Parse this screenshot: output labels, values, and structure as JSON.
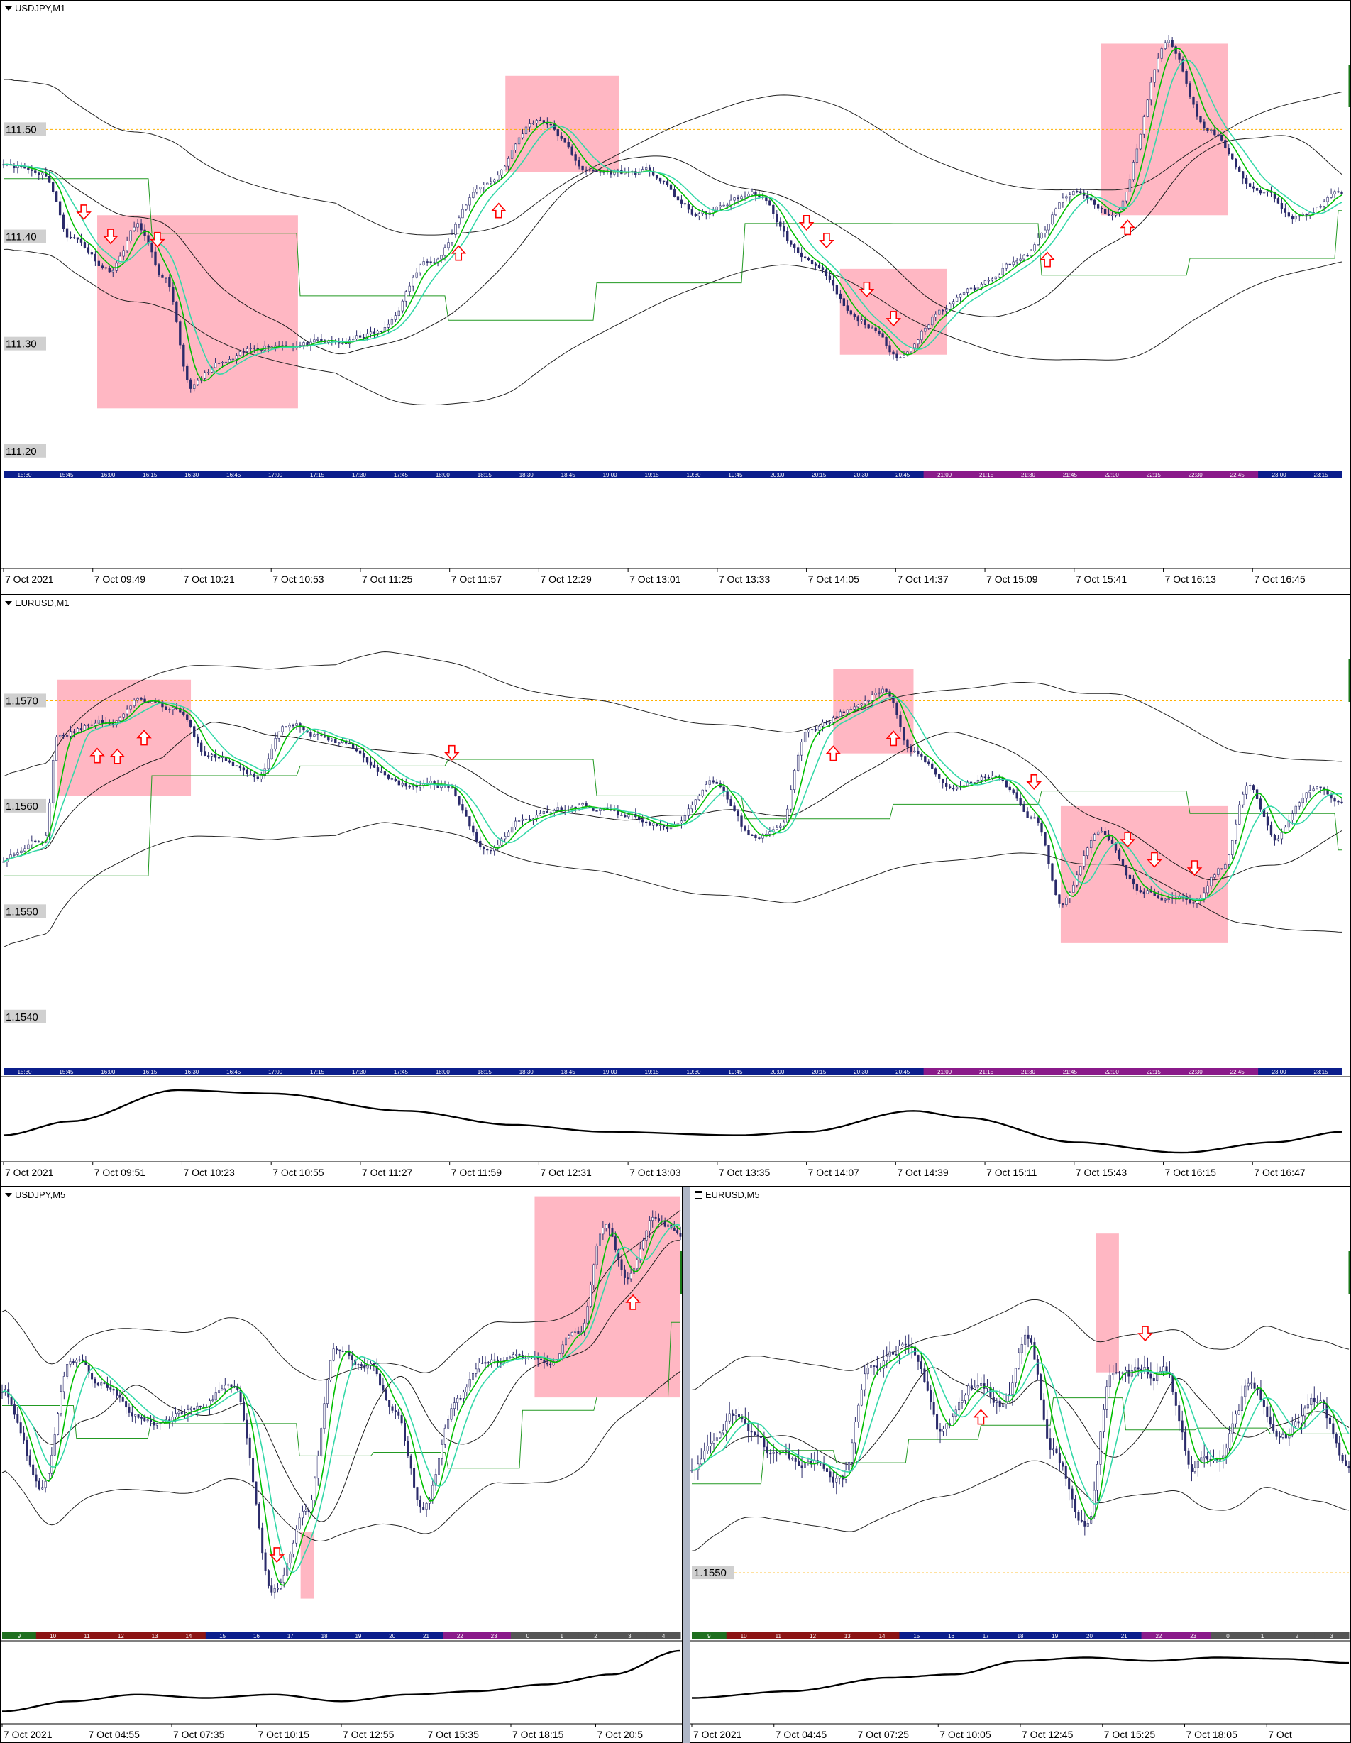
{
  "colors": {
    "bull": "#2a2a6a",
    "box": "#ffaab8",
    "ma_fast": "#00c000",
    "ma_slow": "#34d8a8",
    "envelope": "#222222",
    "mid": "#1a1a1a",
    "baseline": "#229922",
    "arrow": "#ff0000",
    "grid": "#ffb000"
  },
  "panes": [
    {
      "id": "p1",
      "title": "USDJPY,M1",
      "icon": "chevron-down-icon",
      "price_labels": [
        {
          "text": "111.50",
          "v": 111.5
        },
        {
          "text": "111.40",
          "v": 111.4
        },
        {
          "text": "111.30",
          "v": 111.3
        },
        {
          "text": "111.20",
          "v": 111.2
        }
      ],
      "time_labels": [
        "7 Oct 2021",
        "7 Oct 09:49",
        "7 Oct 10:21",
        "7 Oct 10:53",
        "7 Oct 11:25",
        "7 Oct 11:57",
        "7 Oct 12:29",
        "7 Oct 13:01",
        "7 Oct 13:33",
        "7 Oct 14:05",
        "7 Oct 14:37",
        "7 Oct 15:09",
        "7 Oct 15:41",
        "7 Oct 16:13",
        "7 Oct 16:45"
      ],
      "session_labels": [
        "15:30",
        "15:45",
        "16:00",
        "16:15",
        "16:30",
        "16:45",
        "17:00",
        "17:15",
        "17:30",
        "17:45",
        "18:00",
        "18:15",
        "18:30",
        "18:45",
        "19:00",
        "19:15",
        "19:30",
        "19:45",
        "20:00",
        "20:15",
        "20:30",
        "20:45",
        "21:00",
        "21:15",
        "21:30",
        "21:45",
        "22:00",
        "22:15",
        "22:30",
        "22:45",
        "23:00",
        "23:15"
      ]
    },
    {
      "id": "p2",
      "title": "EURUSD,M1",
      "icon": "chevron-down-icon",
      "price_labels": [
        {
          "text": "1.1570",
          "v": 1.157
        },
        {
          "text": "1.1560",
          "v": 1.156
        },
        {
          "text": "1.1550",
          "v": 1.155
        },
        {
          "text": "1.1540",
          "v": 1.154
        }
      ],
      "time_labels": [
        "7 Oct 2021",
        "7 Oct 09:51",
        "7 Oct 10:23",
        "7 Oct 10:55",
        "7 Oct 11:27",
        "7 Oct 11:59",
        "7 Oct 12:31",
        "7 Oct 13:03",
        "7 Oct 13:35",
        "7 Oct 14:07",
        "7 Oct 14:39",
        "7 Oct 15:11",
        "7 Oct 15:43",
        "7 Oct 16:15",
        "7 Oct 16:47"
      ],
      "session_labels": [
        "15:30",
        "15:45",
        "16:00",
        "16:15",
        "16:30",
        "16:45",
        "17:00",
        "17:15",
        "17:30",
        "17:45",
        "18:00",
        "18:15",
        "18:30",
        "18:45",
        "19:00",
        "19:15",
        "19:30",
        "19:45",
        "20:00",
        "20:15",
        "20:30",
        "20:45",
        "21:00",
        "21:15",
        "21:30",
        "21:45",
        "22:00",
        "22:15",
        "22:30",
        "22:45",
        "23:00",
        "23:15"
      ]
    },
    {
      "id": "p3",
      "title": "USDJPY,M5",
      "icon": "chevron-down-icon",
      "price_labels": [],
      "time_labels": [
        "7 Oct 2021",
        "7 Oct 04:55",
        "7 Oct 07:35",
        "7 Oct 10:15",
        "7 Oct 12:55",
        "7 Oct 15:35",
        "7 Oct 18:15",
        "7 Oct 20:5"
      ],
      "session_labels": [
        "9",
        "10",
        "11",
        "12",
        "13",
        "14",
        "15",
        "16",
        "17",
        "18",
        "19",
        "20",
        "21",
        "22",
        "23",
        "0",
        "1",
        "2",
        "3",
        "4"
      ]
    },
    {
      "id": "p4",
      "title": "EURUSD,M5",
      "icon": "window-icon",
      "price_labels": [
        {
          "text": "1.1550",
          "v": 1.155
        }
      ],
      "time_labels": [
        "7 Oct 2021",
        "7 Oct 04:45",
        "7 Oct 07:25",
        "7 Oct 10:05",
        "7 Oct 12:45",
        "7 Oct 15:25",
        "7 Oct 18:05",
        "7 Oct"
      ],
      "session_labels": [
        "9",
        "10",
        "11",
        "12",
        "13",
        "14",
        "15",
        "16",
        "17",
        "18",
        "19",
        "20",
        "21",
        "22",
        "23",
        "0",
        "1",
        "2",
        "3"
      ]
    }
  ],
  "chart_data": [
    {
      "type": "candlestick",
      "symbol": "USDJPY",
      "timeframe": "M1",
      "ylim": [
        111.18,
        111.62
      ],
      "y_ticks": [
        111.2,
        111.3,
        111.4,
        111.5
      ],
      "anchors": [
        [
          0,
          111.47
        ],
        [
          0.03,
          111.46
        ],
        [
          0.05,
          111.4
        ],
        [
          0.08,
          111.37
        ],
        [
          0.1,
          111.41
        ],
        [
          0.12,
          111.36
        ],
        [
          0.14,
          111.26
        ],
        [
          0.16,
          111.28
        ],
        [
          0.2,
          111.3
        ],
        [
          0.25,
          111.3
        ],
        [
          0.28,
          111.31
        ],
        [
          0.32,
          111.38
        ],
        [
          0.36,
          111.45
        ],
        [
          0.4,
          111.51
        ],
        [
          0.44,
          111.46
        ],
        [
          0.48,
          111.46
        ],
        [
          0.52,
          111.42
        ],
        [
          0.56,
          111.44
        ],
        [
          0.6,
          111.38
        ],
        [
          0.64,
          111.32
        ],
        [
          0.67,
          111.29
        ],
        [
          0.7,
          111.33
        ],
        [
          0.72,
          111.35
        ],
        [
          0.76,
          111.38
        ],
        [
          0.8,
          111.44
        ],
        [
          0.83,
          111.42
        ],
        [
          0.87,
          111.58
        ],
        [
          0.9,
          111.5
        ],
        [
          0.94,
          111.44
        ],
        [
          0.97,
          111.42
        ],
        [
          1.0,
          111.44
        ]
      ],
      "boxes": [
        [
          0.07,
          0.22,
          111.24,
          111.42
        ],
        [
          0.375,
          0.46,
          111.46,
          111.55
        ],
        [
          0.625,
          0.705,
          111.29,
          111.37
        ],
        [
          0.82,
          0.915,
          111.42,
          111.58
        ]
      ],
      "arrows": [
        {
          "x": 0.06,
          "dir": "down"
        },
        {
          "x": 0.08,
          "dir": "down"
        },
        {
          "x": 0.115,
          "dir": "down"
        },
        {
          "x": 0.34,
          "dir": "up"
        },
        {
          "x": 0.37,
          "dir": "up"
        },
        {
          "x": 0.6,
          "dir": "down"
        },
        {
          "x": 0.615,
          "dir": "down"
        },
        {
          "x": 0.645,
          "dir": "down"
        },
        {
          "x": 0.665,
          "dir": "down"
        },
        {
          "x": 0.78,
          "dir": "up"
        },
        {
          "x": 0.84,
          "dir": "up"
        }
      ]
    },
    {
      "type": "candlestick",
      "symbol": "EURUSD",
      "timeframe": "M1",
      "ylim": [
        1.1535,
        1.158
      ],
      "y_ticks": [
        1.154,
        1.155,
        1.156,
        1.157
      ],
      "anchors": [
        [
          0,
          1.1555
        ],
        [
          0.03,
          1.1557
        ],
        [
          0.04,
          1.1567
        ],
        [
          0.08,
          1.1568
        ],
        [
          0.1,
          1.157
        ],
        [
          0.13,
          1.1569
        ],
        [
          0.15,
          1.1565
        ],
        [
          0.19,
          1.1563
        ],
        [
          0.21,
          1.1568
        ],
        [
          0.25,
          1.1566
        ],
        [
          0.3,
          1.1562
        ],
        [
          0.33,
          1.1562
        ],
        [
          0.36,
          1.1556
        ],
        [
          0.39,
          1.1559
        ],
        [
          0.43,
          1.156
        ],
        [
          0.47,
          1.1559
        ],
        [
          0.5,
          1.1558
        ],
        [
          0.53,
          1.1562
        ],
        [
          0.56,
          1.1557
        ],
        [
          0.58,
          1.1558
        ],
        [
          0.6,
          1.1567
        ],
        [
          0.63,
          1.1569
        ],
        [
          0.66,
          1.1571
        ],
        [
          0.68,
          1.1565
        ],
        [
          0.71,
          1.1562
        ],
        [
          0.74,
          1.1563
        ],
        [
          0.77,
          1.1559
        ],
        [
          0.79,
          1.1551
        ],
        [
          0.82,
          1.1558
        ],
        [
          0.85,
          1.1552
        ],
        [
          0.89,
          1.1551
        ],
        [
          0.91,
          1.1554
        ],
        [
          0.93,
          1.1562
        ],
        [
          0.95,
          1.1557
        ],
        [
          0.98,
          1.1562
        ],
        [
          1.0,
          1.156
        ]
      ],
      "boxes": [
        [
          0.04,
          0.14,
          1.1561,
          1.1572
        ],
        [
          0.62,
          0.68,
          1.1565,
          1.1573
        ],
        [
          0.79,
          0.915,
          1.1547,
          1.156
        ]
      ],
      "arrows": [
        {
          "x": 0.07,
          "dir": "up"
        },
        {
          "x": 0.085,
          "dir": "up"
        },
        {
          "x": 0.105,
          "dir": "up"
        },
        {
          "x": 0.335,
          "dir": "down"
        },
        {
          "x": 0.62,
          "dir": "up"
        },
        {
          "x": 0.665,
          "dir": "up"
        },
        {
          "x": 0.77,
          "dir": "down"
        },
        {
          "x": 0.84,
          "dir": "down"
        },
        {
          "x": 0.86,
          "dir": "down"
        },
        {
          "x": 0.89,
          "dir": "down"
        }
      ]
    },
    {
      "type": "candlestick",
      "symbol": "USDJPY",
      "timeframe": "M5",
      "ylim": [
        0,
        1
      ],
      "y_ticks": [],
      "anchors": [
        [
          0,
          0.55
        ],
        [
          0.06,
          0.33
        ],
        [
          0.1,
          0.62
        ],
        [
          0.15,
          0.56
        ],
        [
          0.22,
          0.47
        ],
        [
          0.28,
          0.5
        ],
        [
          0.34,
          0.56
        ],
        [
          0.4,
          0.1
        ],
        [
          0.45,
          0.28
        ],
        [
          0.49,
          0.64
        ],
        [
          0.54,
          0.6
        ],
        [
          0.58,
          0.49
        ],
        [
          0.62,
          0.28
        ],
        [
          0.67,
          0.52
        ],
        [
          0.71,
          0.6
        ],
        [
          0.76,
          0.62
        ],
        [
          0.8,
          0.6
        ],
        [
          0.85,
          0.68
        ],
        [
          0.89,
          0.92
        ],
        [
          0.92,
          0.8
        ],
        [
          0.96,
          0.93
        ],
        [
          1.0,
          0.9
        ]
      ],
      "boxes": [
        [
          0.785,
          1.0,
          0.53,
          0.98
        ],
        [
          0.44,
          0.46,
          0.08,
          0.23
        ]
      ],
      "arrows": [
        {
          "x": 0.405,
          "dir": "down"
        },
        {
          "x": 0.93,
          "dir": "up"
        }
      ]
    },
    {
      "type": "candlestick",
      "symbol": "EURUSD",
      "timeframe": "M5",
      "ylim": [
        1.1546,
        1.1575
      ],
      "y_ticks": [
        1.155
      ],
      "anchors": [
        [
          0,
          1.1557
        ],
        [
          0.06,
          1.156
        ],
        [
          0.12,
          1.1558
        ],
        [
          0.18,
          1.1557
        ],
        [
          0.23,
          1.1556
        ],
        [
          0.27,
          1.1563
        ],
        [
          0.33,
          1.1565
        ],
        [
          0.38,
          1.1559
        ],
        [
          0.43,
          1.1562
        ],
        [
          0.47,
          1.1561
        ],
        [
          0.51,
          1.1565
        ],
        [
          0.55,
          1.1558
        ],
        [
          0.6,
          1.1553
        ],
        [
          0.64,
          1.1563
        ],
        [
          0.68,
          1.1563
        ],
        [
          0.72,
          1.1563
        ],
        [
          0.76,
          1.1557
        ],
        [
          0.8,
          1.1558
        ],
        [
          0.85,
          1.1562
        ],
        [
          0.9,
          1.1559
        ],
        [
          0.95,
          1.1561
        ],
        [
          1.0,
          1.1557
        ]
      ],
      "boxes": [
        [
          0.615,
          0.65,
          1.1563,
          1.1572
        ]
      ],
      "arrows": [
        {
          "x": 0.44,
          "dir": "up"
        },
        {
          "x": 0.69,
          "dir": "down"
        }
      ]
    }
  ]
}
